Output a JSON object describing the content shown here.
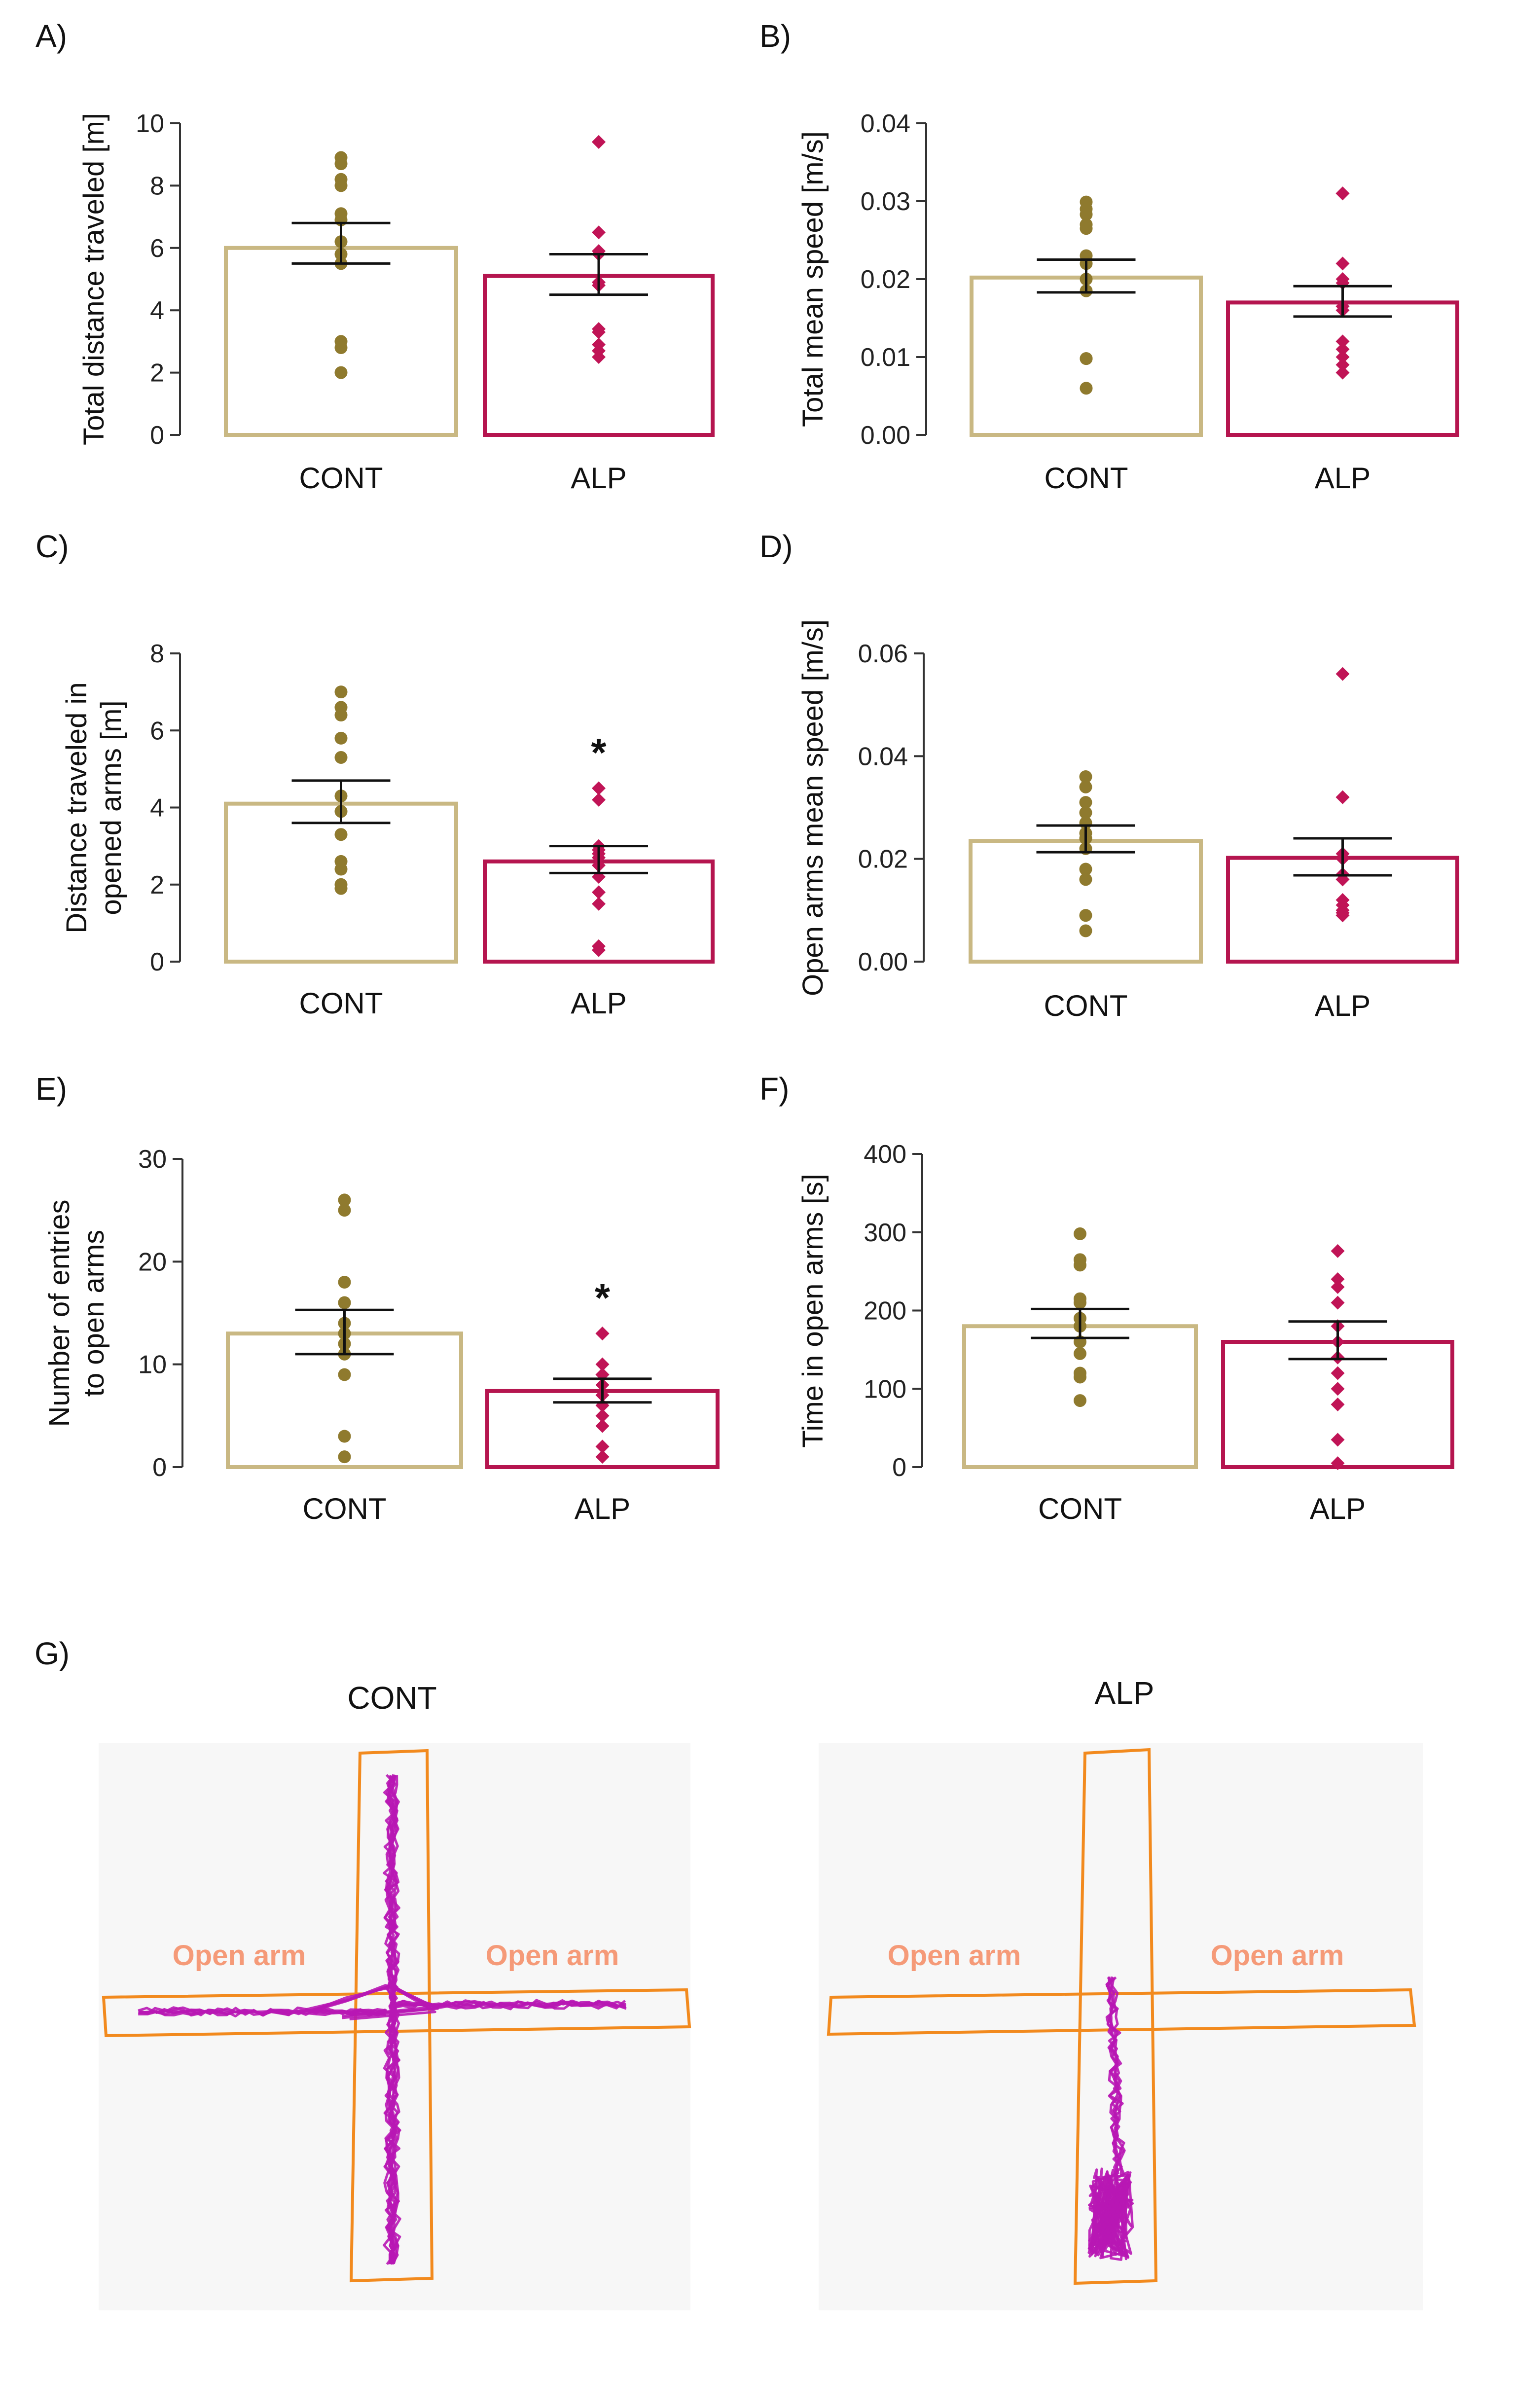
{
  "colors": {
    "cont_bar": "#c9b883",
    "cont_point": "#8f7a2e",
    "alp_bar": "#b5154f",
    "alp_point": "#c01456",
    "axis": "#333333",
    "maze": "#f28a1e",
    "track": "#b817b4",
    "open_arm_label": "#f59a78",
    "arena_bg": "#f7f7f7"
  },
  "chart_data": [
    {
      "panel_label": "A)",
      "type": "bar",
      "ylabel": "Total distance traveled [m]",
      "categories": [
        "CONT",
        "ALP"
      ],
      "ylim": [
        0,
        10
      ],
      "yticks": [
        "0",
        "2",
        "4",
        "6",
        "8",
        "10"
      ],
      "series": [
        {
          "name": "CONT",
          "mean": 6.0,
          "sem_low": 5.5,
          "sem_high": 6.8,
          "points": [
            8.9,
            8.7,
            8.2,
            8.0,
            7.1,
            6.9,
            6.2,
            5.8,
            5.5,
            3.0,
            2.8,
            2.0
          ]
        },
        {
          "name": "ALP",
          "mean": 5.1,
          "sem_low": 4.5,
          "sem_high": 5.8,
          "points": [
            9.4,
            9.4,
            6.5,
            5.9,
            5.8,
            4.9,
            4.8,
            3.4,
            3.3,
            2.9,
            2.7,
            2.5
          ]
        }
      ],
      "annotation": ""
    },
    {
      "panel_label": "B)",
      "type": "bar",
      "ylabel": "Total mean speed [m/s]",
      "categories": [
        "CONT",
        "ALP"
      ],
      "ylim": [
        0,
        0.04
      ],
      "yticks": [
        "0.00",
        "0.01",
        "0.02",
        "0.03",
        "0.04"
      ],
      "series": [
        {
          "name": "CONT",
          "mean": 0.0202,
          "sem_low": 0.0183,
          "sem_high": 0.0225,
          "points": [
            0.0299,
            0.029,
            0.0283,
            0.027,
            0.0265,
            0.023,
            0.022,
            0.02,
            0.0185,
            0.0098,
            0.0098,
            0.006
          ]
        },
        {
          "name": "ALP",
          "mean": 0.017,
          "sem_low": 0.0152,
          "sem_high": 0.0191,
          "points": [
            0.031,
            0.031,
            0.022,
            0.02,
            0.0195,
            0.0165,
            0.016,
            0.012,
            0.011,
            0.01,
            0.009,
            0.008
          ]
        }
      ],
      "annotation": ""
    },
    {
      "panel_label": "C)",
      "type": "bar",
      "ylabel": "Distance traveled in opened arms [m]",
      "ylabel_lines": [
        "Distance traveled in",
        "opened arms [m]"
      ],
      "categories": [
        "CONT",
        "ALP"
      ],
      "ylim": [
        0,
        8
      ],
      "yticks": [
        "0",
        "2",
        "4",
        "6",
        "8"
      ],
      "series": [
        {
          "name": "CONT",
          "mean": 4.1,
          "sem_low": 3.6,
          "sem_high": 4.7,
          "points": [
            7.0,
            6.6,
            6.4,
            5.8,
            5.3,
            4.3,
            3.9,
            3.3,
            2.6,
            2.4,
            2.0,
            1.9
          ]
        },
        {
          "name": "ALP",
          "mean": 2.6,
          "sem_low": 2.3,
          "sem_high": 3.0,
          "points": [
            4.5,
            4.2,
            3.0,
            2.9,
            2.8,
            2.7,
            2.5,
            2.2,
            1.8,
            1.5,
            0.4,
            0.3
          ]
        }
      ],
      "annotation": "*"
    },
    {
      "panel_label": "D)",
      "type": "bar",
      "ylabel": "Open arms mean speed [m/s]",
      "categories": [
        "CONT",
        "ALP"
      ],
      "ylim": [
        0,
        0.06
      ],
      "yticks": [
        "0.00",
        "0.02",
        "0.04",
        "0.06"
      ],
      "series": [
        {
          "name": "CONT",
          "mean": 0.0235,
          "sem_low": 0.0213,
          "sem_high": 0.0265,
          "points": [
            0.036,
            0.034,
            0.031,
            0.029,
            0.027,
            0.025,
            0.024,
            0.022,
            0.018,
            0.016,
            0.009,
            0.006
          ]
        },
        {
          "name": "ALP",
          "mean": 0.0202,
          "sem_low": 0.0168,
          "sem_high": 0.024,
          "points": [
            0.056,
            0.032,
            0.032,
            0.021,
            0.02,
            0.017,
            0.016,
            0.012,
            0.011,
            0.01,
            0.0095,
            0.009
          ]
        }
      ],
      "annotation": ""
    },
    {
      "panel_label": "E)",
      "type": "bar",
      "ylabel": "Number of entries to open arms",
      "ylabel_lines": [
        "Number of entries",
        "to open arms"
      ],
      "categories": [
        "CONT",
        "ALP"
      ],
      "ylim": [
        0,
        30
      ],
      "yticks": [
        "0",
        "10",
        "20",
        "30"
      ],
      "series": [
        {
          "name": "CONT",
          "mean": 13.0,
          "sem_low": 11.0,
          "sem_high": 15.3,
          "points": [
            26,
            25,
            18,
            16,
            16,
            14,
            13,
            12,
            11,
            9,
            3,
            1
          ]
        },
        {
          "name": "ALP",
          "mean": 7.4,
          "sem_low": 6.3,
          "sem_high": 8.6,
          "points": [
            13,
            13,
            10,
            9,
            9,
            8,
            7,
            6,
            5,
            4,
            2,
            1
          ]
        }
      ],
      "annotation": "*"
    },
    {
      "panel_label": "F)",
      "type": "bar",
      "ylabel": "Time in open arms [s]",
      "categories": [
        "CONT",
        "ALP"
      ],
      "ylim": [
        0,
        400
      ],
      "yticks": [
        "0",
        "100",
        "200",
        "300",
        "400"
      ],
      "series": [
        {
          "name": "CONT",
          "mean": 180,
          "sem_low": 165,
          "sem_high": 202,
          "points": [
            298,
            265,
            258,
            215,
            210,
            190,
            180,
            160,
            145,
            120,
            115,
            85
          ]
        },
        {
          "name": "ALP",
          "mean": 160,
          "sem_low": 138,
          "sem_high": 186,
          "points": [
            276,
            240,
            230,
            210,
            180,
            160,
            140,
            120,
            100,
            80,
            35,
            5
          ]
        }
      ],
      "annotation": ""
    }
  ],
  "panel_g": {
    "label": "G)",
    "arenas": [
      {
        "title": "CONT",
        "left_label": "Open arm",
        "right_label": "Open arm"
      },
      {
        "title": "ALP",
        "left_label": "Open arm",
        "right_label": "Open arm"
      }
    ]
  }
}
